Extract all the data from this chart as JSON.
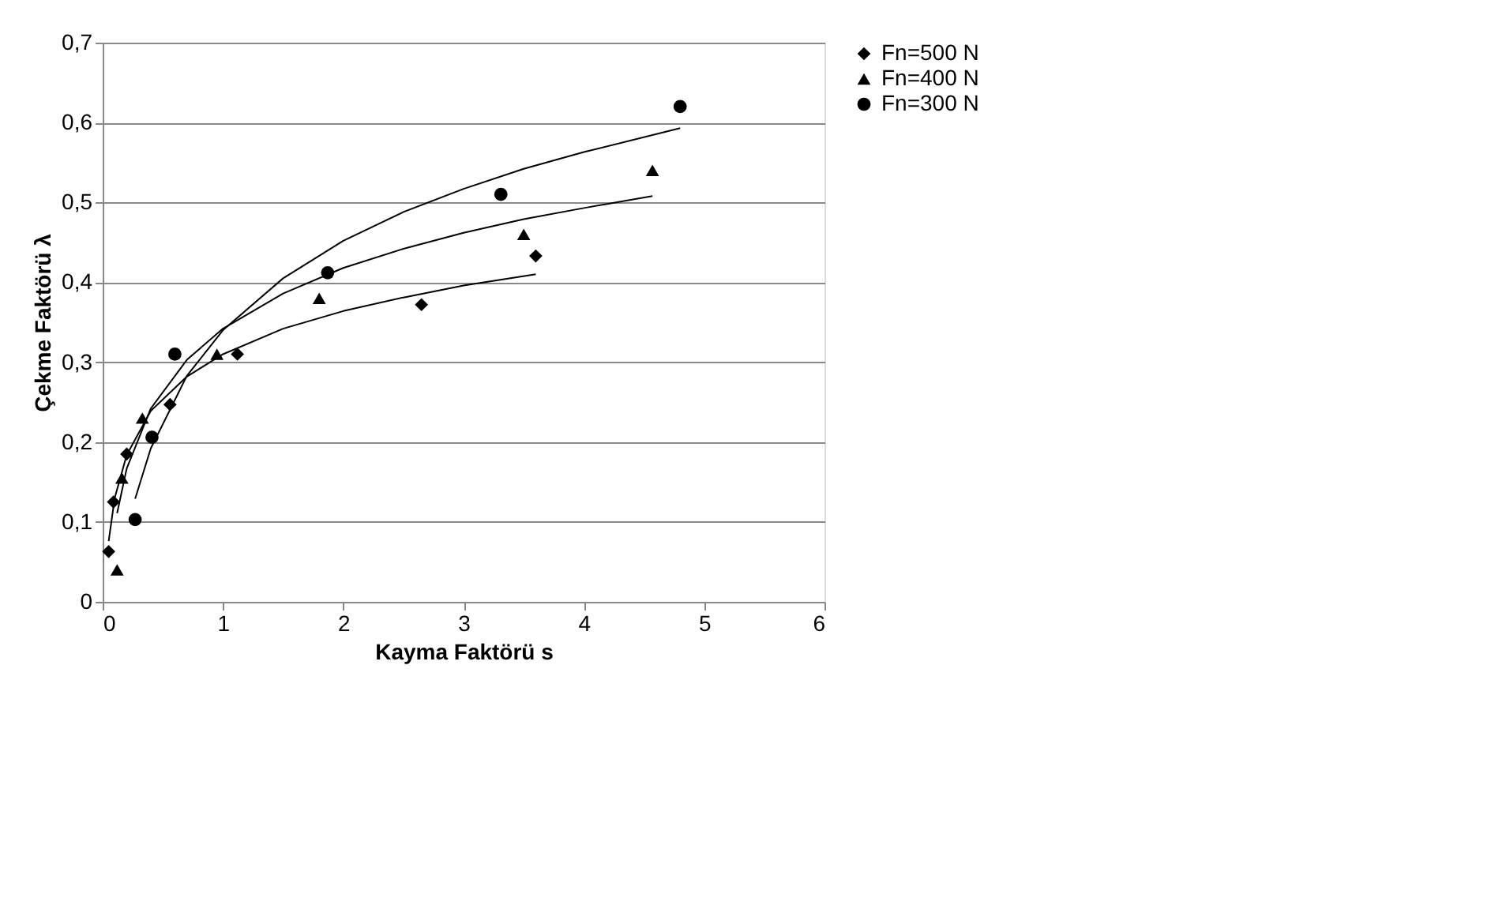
{
  "chart_data": {
    "type": "scatter",
    "xlabel": "Kayma Faktörü s",
    "ylabel": "Çekme Faktörü λ",
    "xlim": [
      0,
      6
    ],
    "xticks": [
      0,
      1,
      2,
      3,
      4,
      5,
      6
    ],
    "ylim": [
      0,
      0.7
    ],
    "yticks": [
      0,
      {
        "value": 0.1,
        "label": "0,1"
      },
      {
        "value": 0.2,
        "label": "0,2"
      },
      {
        "value": 0.3,
        "label": "0,3"
      },
      {
        "value": 0.4,
        "label": "0,4"
      },
      {
        "value": 0.5,
        "label": "0,5"
      },
      {
        "value": 0.6,
        "label": "0,6"
      },
      {
        "value": 0.7,
        "label": "0,7"
      }
    ],
    "grid": "y",
    "legend": "right",
    "series": [
      {
        "name": "Fn=500 N",
        "color": "#000000",
        "marker": "diamond",
        "x": [
          0.05,
          0.09,
          0.2,
          0.56,
          1.12,
          2.65,
          3.6
        ],
        "values": [
          0.063,
          0.125,
          0.185,
          0.247,
          0.31,
          0.372,
          0.433
        ]
      },
      {
        "name": "Fn=400 N",
        "color": "#000000",
        "marker": "triangle",
        "x": [
          0.12,
          0.16,
          0.33,
          0.95,
          1.8,
          3.5,
          4.57
        ],
        "values": [
          0.04,
          0.155,
          0.23,
          0.31,
          0.38,
          0.46,
          0.54
        ]
      },
      {
        "name": "Fn=300 N",
        "color": "#000000",
        "marker": "circle",
        "x": [
          0.27,
          0.41,
          0.6,
          1.87,
          3.31,
          4.8
        ],
        "values": [
          0.103,
          0.206,
          0.31,
          0.412,
          0.51,
          0.62
        ]
      },
      {
        "type": "line",
        "color": "#000000",
        "line_style": "solid",
        "x": [
          0.05,
          0.1,
          0.2,
          0.4,
          0.7,
          1,
          1.5,
          2,
          2.5,
          3,
          3.6
        ],
        "values": [
          0.076,
          0.13,
          0.184,
          0.239,
          0.282,
          0.31,
          0.342,
          0.364,
          0.381,
          0.396,
          0.41
        ]
      },
      {
        "type": "line",
        "color": "#000000",
        "line_style": "solid",
        "x": [
          0.12,
          0.2,
          0.4,
          0.7,
          1,
          1.5,
          2,
          2.5,
          3,
          3.5,
          4,
          4.57
        ],
        "values": [
          0.111,
          0.167,
          0.242,
          0.303,
          0.342,
          0.386,
          0.418,
          0.442,
          0.462,
          0.479,
          0.493,
          0.508
        ]
      },
      {
        "type": "line",
        "color": "#000000",
        "line_style": "solid",
        "x": [
          0.27,
          0.4,
          0.7,
          1,
          1.5,
          2,
          2.5,
          3,
          3.5,
          4,
          4.8
        ],
        "values": [
          0.129,
          0.192,
          0.283,
          0.34,
          0.405,
          0.452,
          0.488,
          0.517,
          0.542,
          0.563,
          0.593
        ]
      }
    ]
  }
}
